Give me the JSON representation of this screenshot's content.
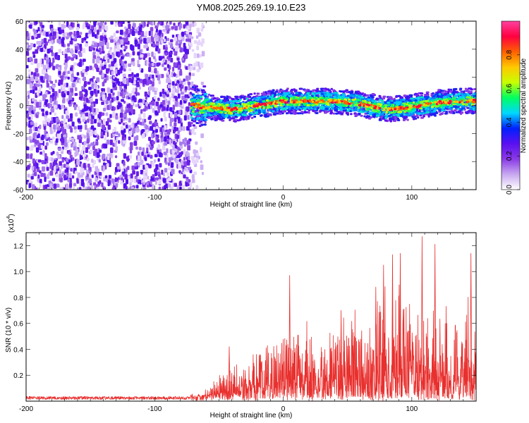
{
  "title": "YM08.2025.269.19.10.E23",
  "chart_data": [
    {
      "type": "heatmap",
      "name": "spectrogram",
      "xlabel": "Height of straight line (km)",
      "ylabel": "Frequency (Hz)",
      "xlim": [
        -200,
        150
      ],
      "ylim": [
        -60,
        60
      ],
      "xticks": [
        -200,
        -100,
        0,
        100
      ],
      "xtick_labels": [
        "-200",
        "-100",
        "0",
        "100"
      ],
      "yticks": [
        -60,
        -40,
        -20,
        0,
        20,
        40,
        60
      ],
      "ytick_labels": [
        "-60",
        "-40",
        "-20",
        "0",
        "20",
        "40",
        "60"
      ],
      "noise_region_x": [
        -200,
        -72
      ],
      "signal_band_center": [
        [
          -72,
          0
        ],
        [
          -60,
          -1
        ],
        [
          -40,
          -3
        ],
        [
          -20,
          0
        ],
        [
          0,
          3
        ],
        [
          20,
          3
        ],
        [
          40,
          3
        ],
        [
          60,
          1
        ],
        [
          80,
          -3
        ],
        [
          100,
          -1
        ],
        [
          120,
          2
        ],
        [
          140,
          3
        ],
        [
          150,
          3
        ]
      ],
      "signal_band_halfwidth_hz": [
        6,
        3,
        1
      ],
      "colorbar": {
        "label": "Normalized spectral amplitude",
        "range": [
          0,
          1
        ],
        "ticks": [
          0,
          0.2,
          0.4,
          0.6,
          0.8
        ],
        "tick_labels": [
          "0.0",
          "0.2",
          "0.4",
          "0.6",
          "0.8"
        ],
        "colors": [
          "#ffffff",
          "#c8a8f0",
          "#8a3ae6",
          "#5a10f0",
          "#0020ff",
          "#00d8ff",
          "#00ff60",
          "#c8ff00",
          "#ffc800",
          "#ff6000",
          "#ff0040",
          "#ff40a0"
        ]
      }
    },
    {
      "type": "line",
      "name": "snr",
      "xlabel": "Height of straight line (km)",
      "ylabel": "SNR (10 * v/v)",
      "y_scale_label": "(x10",
      "y_scale_exp": "4",
      "xlim": [
        -200,
        150
      ],
      "ylim": [
        0,
        1.3
      ],
      "xticks": [
        -200,
        -100,
        0,
        100
      ],
      "xtick_labels": [
        "-200",
        "-100",
        "0",
        "100"
      ],
      "yticks": [
        0.2,
        0.4,
        0.6,
        0.8,
        1.0,
        1.2
      ],
      "ytick_labels": [
        "0.2",
        "0.4",
        "0.6",
        "0.8",
        "1.0",
        "1.2"
      ],
      "envelope": [
        [
          -200,
          0.03
        ],
        [
          -100,
          0.03
        ],
        [
          -72,
          0.03
        ],
        [
          -60,
          0.06
        ],
        [
          -50,
          0.2
        ],
        [
          -40,
          0.3
        ],
        [
          -30,
          0.38
        ],
        [
          -20,
          0.45
        ],
        [
          -10,
          0.55
        ],
        [
          0,
          0.62
        ],
        [
          10,
          0.7
        ],
        [
          20,
          0.62
        ],
        [
          30,
          0.68
        ],
        [
          40,
          0.62
        ],
        [
          50,
          0.74
        ],
        [
          60,
          0.8
        ],
        [
          70,
          0.78
        ],
        [
          80,
          0.92
        ],
        [
          90,
          0.95
        ],
        [
          100,
          0.88
        ],
        [
          110,
          0.8
        ],
        [
          120,
          0.82
        ],
        [
          130,
          0.78
        ],
        [
          140,
          0.85
        ],
        [
          150,
          0.85
        ]
      ],
      "peaks": [
        [
          -42,
          0.42
        ],
        [
          5,
          0.97
        ],
        [
          45,
          0.7
        ],
        [
          72,
          0.88
        ],
        [
          78,
          1.05
        ],
        [
          85,
          1.13
        ],
        [
          91,
          1.14
        ],
        [
          108,
          1.27
        ],
        [
          118,
          1.21
        ],
        [
          146,
          1.14
        ]
      ],
      "color": "#e8302e"
    }
  ]
}
